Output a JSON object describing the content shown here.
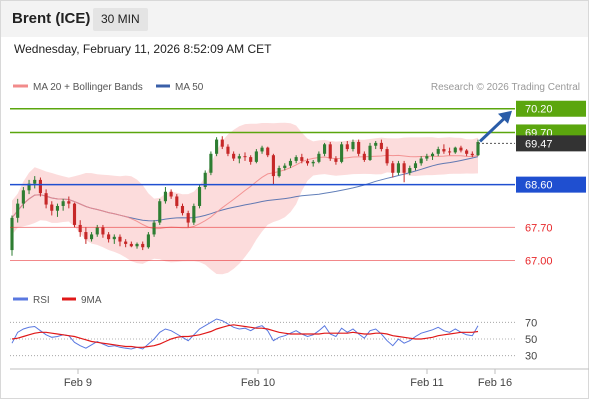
{
  "header": {
    "symbol": "Brent (ICE)",
    "timeframe": "30 MIN"
  },
  "datetime": "Wednesday, February 11, 2026 8:52:09 AM CET",
  "legend": {
    "ma20_bb": "MA 20 + Bollinger Bands",
    "ma50": "MA 50",
    "copyright": "Research © 2026 Trading Central"
  },
  "rsi_legend": {
    "rsi": "RSI",
    "ma9": "9MA"
  },
  "colors": {
    "green": "#5ba60e",
    "blue": "#1f4fd0",
    "red": "#e8282b",
    "bull": "#2e7d32",
    "bear": "#c62828",
    "bb_fill": "#fbd6d6",
    "ma20": "#f28b8b",
    "ma50": "#3a5fa8",
    "rsi": "#5a78e0",
    "rsi_ma": "#e01818",
    "arrow": "#2a5ca8",
    "current": "#333333"
  },
  "levels": [
    {
      "label": "70.20",
      "value": 70.2,
      "kind": "resistance"
    },
    {
      "label": "69.70",
      "value": 69.7,
      "kind": "resistance"
    },
    {
      "label": "68.60",
      "value": 68.6,
      "kind": "pivot"
    },
    {
      "label": "67.70",
      "value": 67.7,
      "kind": "support"
    },
    {
      "label": "67.00",
      "value": 67.0,
      "kind": "support"
    }
  ],
  "current_price": {
    "label": "69.47",
    "value": 69.47
  },
  "chart_data": {
    "type": "candlestick",
    "x_labels": [
      "Feb 9",
      "Feb 10",
      "Feb 11",
      "Feb 16"
    ],
    "y_range": [
      66.8,
      70.3
    ],
    "rsi_ticks": [
      "70",
      "50",
      "30"
    ],
    "rsi_range": [
      20,
      80
    ],
    "candles": [
      [
        67.22,
        67.95,
        67.1,
        67.9
      ],
      [
        67.9,
        68.3,
        67.8,
        68.2
      ],
      [
        68.2,
        68.55,
        68.1,
        68.48
      ],
      [
        68.48,
        68.7,
        68.4,
        68.62
      ],
      [
        68.62,
        68.78,
        68.52,
        68.7
      ],
      [
        68.7,
        68.75,
        68.35,
        68.42
      ],
      [
        68.42,
        68.5,
        68.1,
        68.18
      ],
      [
        68.18,
        68.25,
        67.95,
        68.05
      ],
      [
        68.05,
        68.2,
        67.92,
        68.15
      ],
      [
        68.15,
        68.3,
        68.05,
        68.25
      ],
      [
        68.25,
        68.35,
        68.1,
        68.2
      ],
      [
        68.2,
        68.22,
        67.7,
        67.75
      ],
      [
        67.75,
        67.85,
        67.5,
        67.6
      ],
      [
        67.6,
        67.7,
        67.35,
        67.45
      ],
      [
        67.45,
        67.6,
        67.4,
        67.55
      ],
      [
        67.55,
        67.75,
        67.5,
        67.7
      ],
      [
        67.7,
        67.75,
        67.48,
        67.55
      ],
      [
        67.55,
        67.6,
        67.38,
        67.45
      ],
      [
        67.45,
        67.55,
        67.35,
        67.5
      ],
      [
        67.5,
        67.55,
        67.3,
        67.4
      ],
      [
        67.4,
        67.45,
        67.28,
        67.35
      ],
      [
        67.35,
        67.4,
        67.28,
        67.3
      ],
      [
        67.3,
        67.38,
        67.25,
        67.35
      ],
      [
        67.35,
        67.4,
        67.22,
        67.28
      ],
      [
        67.28,
        67.6,
        67.25,
        67.55
      ],
      [
        67.55,
        67.85,
        67.5,
        67.8
      ],
      [
        67.8,
        68.3,
        67.75,
        68.25
      ],
      [
        68.25,
        68.55,
        68.2,
        68.45
      ],
      [
        68.45,
        68.5,
        68.3,
        68.35
      ],
      [
        68.35,
        68.4,
        68.1,
        68.15
      ],
      [
        68.15,
        68.2,
        67.95,
        68.0
      ],
      [
        68.0,
        68.05,
        67.7,
        67.8
      ],
      [
        67.8,
        68.2,
        67.75,
        68.15
      ],
      [
        68.15,
        68.6,
        68.1,
        68.55
      ],
      [
        68.55,
        68.9,
        68.5,
        68.85
      ],
      [
        68.85,
        69.3,
        68.8,
        69.25
      ],
      [
        69.25,
        69.6,
        69.2,
        69.55
      ],
      [
        69.55,
        69.62,
        69.35,
        69.4
      ],
      [
        69.4,
        69.45,
        69.2,
        69.25
      ],
      [
        69.25,
        69.3,
        69.1,
        69.15
      ],
      [
        69.15,
        69.25,
        69.05,
        69.2
      ],
      [
        69.2,
        69.28,
        69.1,
        69.18
      ],
      [
        69.18,
        69.22,
        69.02,
        69.08
      ],
      [
        69.08,
        69.35,
        69.05,
        69.3
      ],
      [
        69.3,
        69.42,
        69.25,
        69.38
      ],
      [
        69.38,
        69.4,
        69.18,
        69.22
      ],
      [
        69.22,
        69.25,
        68.6,
        68.78
      ],
      [
        68.78,
        69.0,
        68.75,
        68.95
      ],
      [
        68.95,
        69.05,
        68.9,
        69.0
      ],
      [
        69.0,
        69.15,
        68.95,
        69.1
      ],
      [
        69.1,
        69.22,
        69.05,
        69.18
      ],
      [
        69.18,
        69.25,
        69.05,
        69.1
      ],
      [
        69.1,
        69.15,
        69.0,
        69.05
      ],
      [
        69.05,
        69.12,
        68.98,
        69.08
      ],
      [
        69.08,
        69.3,
        69.05,
        69.25
      ],
      [
        69.25,
        69.48,
        69.2,
        69.45
      ],
      [
        69.45,
        69.5,
        69.1,
        69.15
      ],
      [
        69.15,
        69.2,
        69.02,
        69.08
      ],
      [
        69.08,
        69.5,
        69.05,
        69.45
      ],
      [
        69.45,
        69.52,
        69.3,
        69.35
      ],
      [
        69.35,
        69.55,
        69.3,
        69.5
      ],
      [
        69.5,
        69.55,
        69.2,
        69.25
      ],
      [
        69.25,
        69.3,
        69.08,
        69.12
      ],
      [
        69.12,
        69.48,
        69.1,
        69.42
      ],
      [
        69.42,
        69.52,
        69.35,
        69.48
      ],
      [
        69.48,
        69.55,
        69.3,
        69.35
      ],
      [
        69.35,
        69.4,
        69.0,
        69.05
      ],
      [
        69.05,
        69.1,
        68.75,
        68.85
      ],
      [
        68.85,
        69.1,
        68.8,
        69.05
      ],
      [
        69.05,
        69.1,
        68.65,
        68.85
      ],
      [
        68.85,
        69.0,
        68.8,
        68.95
      ],
      [
        68.95,
        69.1,
        68.9,
        69.05
      ],
      [
        69.05,
        69.2,
        69.0,
        69.15
      ],
      [
        69.15,
        69.25,
        69.1,
        69.2
      ],
      [
        69.2,
        69.28,
        69.12,
        69.25
      ],
      [
        69.25,
        69.4,
        69.2,
        69.35
      ],
      [
        69.35,
        69.45,
        69.25,
        69.3
      ],
      [
        69.3,
        69.38,
        69.22,
        69.28
      ],
      [
        69.28,
        69.4,
        69.25,
        69.38
      ],
      [
        69.38,
        69.42,
        69.28,
        69.32
      ],
      [
        69.32,
        69.35,
        69.2,
        69.25
      ],
      [
        69.25,
        69.3,
        69.18,
        69.22
      ],
      [
        69.22,
        69.55,
        69.2,
        69.5
      ]
    ],
    "rsi": [
      45,
      58,
      62,
      64,
      65,
      60,
      55,
      52,
      53,
      55,
      54,
      46,
      42,
      39,
      43,
      47,
      44,
      41,
      42,
      40,
      39,
      38,
      40,
      38,
      44,
      50,
      58,
      62,
      60,
      56,
      52,
      48,
      55,
      62,
      66,
      70,
      74,
      72,
      68,
      64,
      62,
      63,
      60,
      64,
      66,
      60,
      48,
      52,
      54,
      57,
      60,
      56,
      53,
      55,
      60,
      66,
      56,
      53,
      63,
      58,
      62,
      56,
      51,
      60,
      62,
      56,
      48,
      42,
      50,
      45,
      48,
      53,
      57,
      59,
      61,
      64,
      60,
      58,
      62,
      58,
      55,
      54,
      66
    ],
    "rsi_ma": [
      50,
      51,
      53,
      55,
      57,
      58,
      58,
      57,
      56,
      55,
      54,
      53,
      51,
      49,
      47,
      46,
      45,
      44,
      43,
      42,
      41,
      41,
      40,
      40,
      41,
      42,
      44,
      47,
      50,
      52,
      53,
      53,
      54,
      55,
      57,
      59,
      62,
      64,
      66,
      67,
      66,
      65,
      64,
      63,
      63,
      62,
      60,
      58,
      57,
      56,
      56,
      56,
      56,
      56,
      56,
      57,
      57,
      57,
      57,
      57,
      58,
      57,
      56,
      56,
      57,
      57,
      56,
      54,
      53,
      52,
      51,
      50,
      50,
      51,
      52,
      54,
      55,
      56,
      57,
      58,
      58,
      58,
      59
    ]
  }
}
